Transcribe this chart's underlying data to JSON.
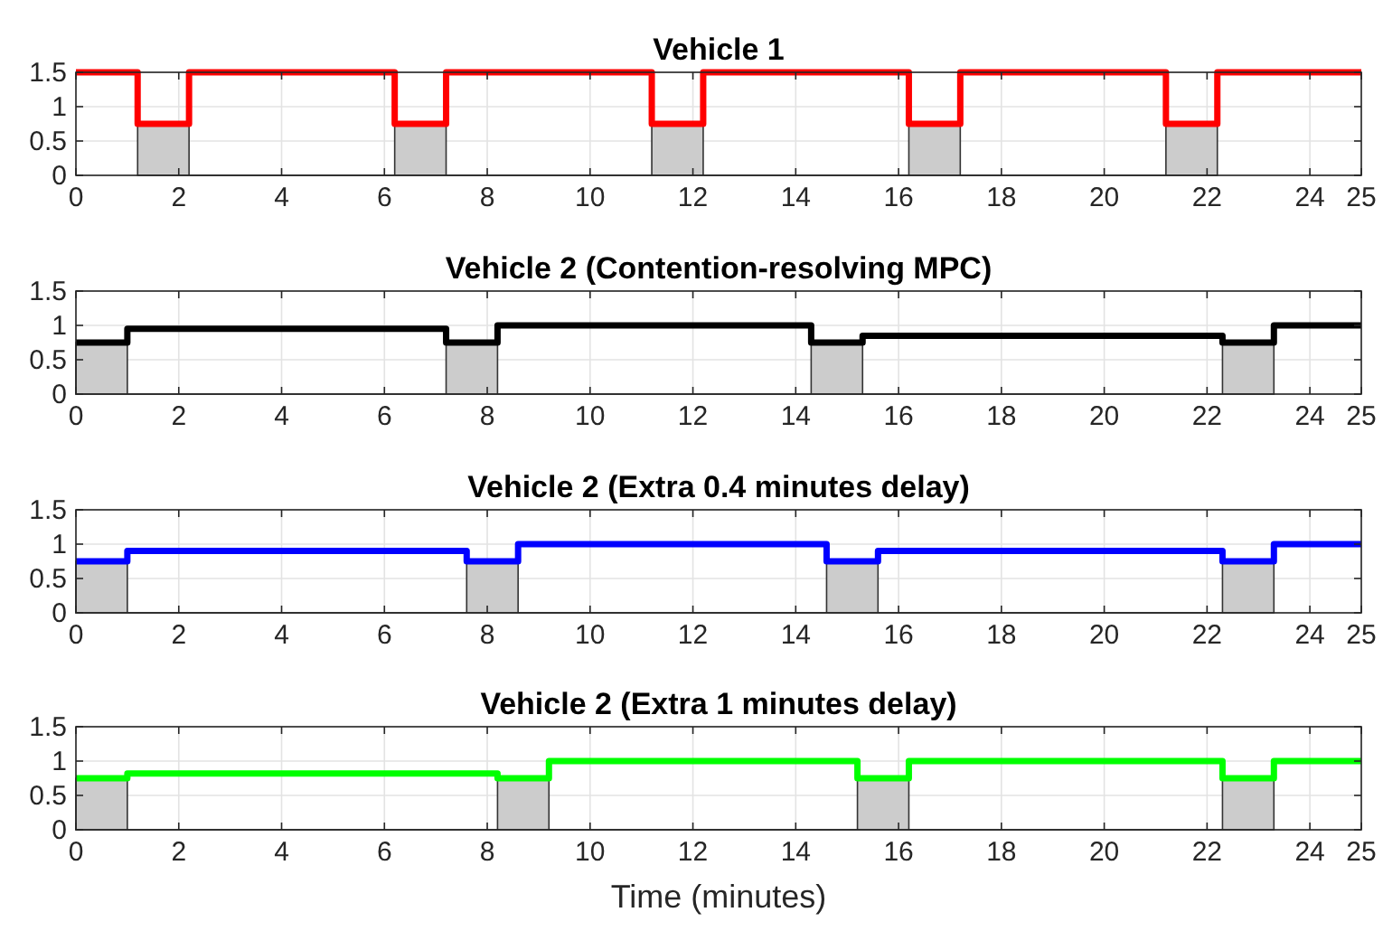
{
  "chart_data": [
    {
      "type": "step",
      "title": "Vehicle 1",
      "xlim": [
        0,
        25
      ],
      "ylim": [
        0,
        1.5
      ],
      "xticks": [
        0,
        2,
        4,
        6,
        8,
        10,
        12,
        14,
        16,
        18,
        20,
        22,
        24,
        25
      ],
      "yticks": [
        0,
        0.5,
        1,
        1.5
      ],
      "grid": true,
      "line_style": "solid",
      "marker": "none",
      "series": [
        {
          "type": "area",
          "color": "#cccccc",
          "x": [
            1.2,
            2.2,
            6.2,
            7.2,
            11.2,
            12.2,
            16.2,
            17.2,
            21.2,
            22.2
          ],
          "values": [
            0.75,
            0,
            0.75,
            0,
            0.75,
            0,
            0.75,
            0,
            0.75,
            0
          ]
        },
        {
          "color": "#ff0000",
          "x": [
            0,
            1.2,
            2.2,
            6.2,
            7.2,
            11.2,
            12.2,
            16.2,
            17.2,
            21.2,
            22.2,
            25
          ],
          "values": [
            1.5,
            0.75,
            1.5,
            0.75,
            1.5,
            0.75,
            1.5,
            0.75,
            1.5,
            0.75,
            1.5,
            1.5
          ]
        }
      ]
    },
    {
      "type": "step",
      "title": "Vehicle 2 (Contention-resolving MPC)",
      "xlim": [
        0,
        25
      ],
      "ylim": [
        0,
        1.5
      ],
      "xticks": [
        0,
        2,
        4,
        6,
        8,
        10,
        12,
        14,
        16,
        18,
        20,
        22,
        24,
        25
      ],
      "yticks": [
        0,
        0.5,
        1,
        1.5
      ],
      "grid": true,
      "line_style": "solid",
      "marker": "none",
      "series": [
        {
          "type": "area",
          "color": "#cccccc",
          "x": [
            0,
            1,
            7.2,
            8.2,
            14.3,
            15.3,
            22.3,
            23.3
          ],
          "values": [
            0.75,
            0,
            0.75,
            0,
            0.75,
            0,
            0.75,
            0
          ]
        },
        {
          "color": "#000000",
          "x": [
            0,
            1,
            7.2,
            8.2,
            14.3,
            15.3,
            22.3,
            23.3,
            25
          ],
          "values": [
            0.75,
            0.95,
            0.75,
            1,
            0.75,
            0.85,
            0.75,
            1,
            1
          ]
        }
      ]
    },
    {
      "type": "step",
      "title": "Vehicle 2 (Extra 0.4 minutes delay)",
      "xlim": [
        0,
        25
      ],
      "ylim": [
        0,
        1.5
      ],
      "xticks": [
        0,
        2,
        4,
        6,
        8,
        10,
        12,
        14,
        16,
        18,
        20,
        22,
        24,
        25
      ],
      "yticks": [
        0,
        0.5,
        1,
        1.5
      ],
      "grid": true,
      "line_style": "solid",
      "marker": "none",
      "series": [
        {
          "type": "area",
          "color": "#cccccc",
          "x": [
            0,
            1,
            7.6,
            8.6,
            14.6,
            15.6,
            22.3,
            23.3
          ],
          "values": [
            0.75,
            0,
            0.75,
            0,
            0.75,
            0,
            0.75,
            0
          ]
        },
        {
          "color": "#0000ff",
          "x": [
            0,
            1,
            7.6,
            8.6,
            14.6,
            15.6,
            22.3,
            23.3,
            25
          ],
          "values": [
            0.75,
            0.9,
            0.75,
            1,
            0.75,
            0.9,
            0.75,
            1,
            1
          ]
        }
      ]
    },
    {
      "type": "step",
      "title": "Vehicle 2 (Extra 1 minutes delay)",
      "xlabel": "Time (minutes)",
      "xlim": [
        0,
        25
      ],
      "ylim": [
        0,
        1.5
      ],
      "xticks": [
        0,
        2,
        4,
        6,
        8,
        10,
        12,
        14,
        16,
        18,
        20,
        22,
        24,
        25
      ],
      "yticks": [
        0,
        0.5,
        1,
        1.5
      ],
      "grid": true,
      "line_style": "solid",
      "marker": "none",
      "series": [
        {
          "type": "area",
          "color": "#cccccc",
          "x": [
            0,
            1,
            8.2,
            9.2,
            15.2,
            16.2,
            22.3,
            23.3
          ],
          "values": [
            0.75,
            0,
            0.75,
            0,
            0.75,
            0,
            0.75,
            0
          ]
        },
        {
          "color": "#00ff00",
          "x": [
            0,
            1,
            8.2,
            9.2,
            15.2,
            16.2,
            22.3,
            23.3,
            25
          ],
          "values": [
            0.75,
            0.82,
            0.75,
            1,
            0.75,
            1,
            0.75,
            1,
            1
          ]
        }
      ]
    }
  ]
}
